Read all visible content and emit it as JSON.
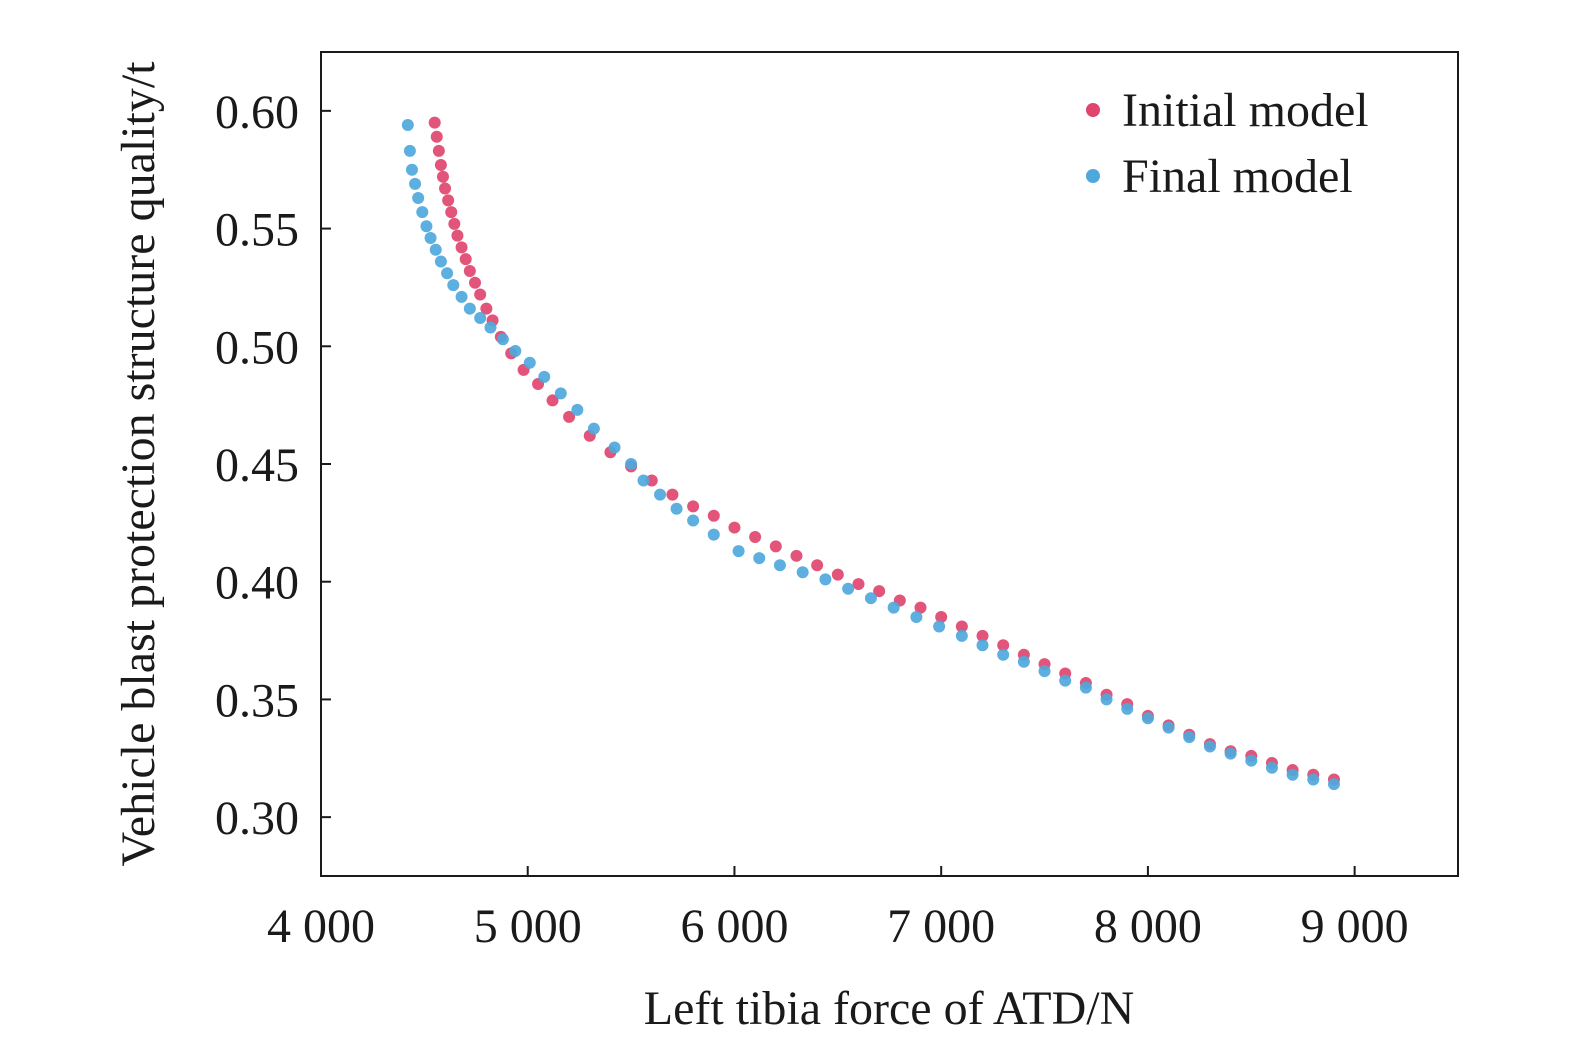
{
  "chart_data": {
    "type": "scatter",
    "xlabel": "Left tibia force of ATD/N",
    "ylabel": "Vehicle blast protection structure quality/t",
    "xlim": [
      4000,
      9500
    ],
    "ylim": [
      0.275,
      0.625
    ],
    "x_ticks": [
      4000,
      5000,
      6000,
      7000,
      8000,
      9000
    ],
    "x_tick_labels": [
      "4 000",
      "5 000",
      "6 000",
      "7 000",
      "8 000",
      "9 000"
    ],
    "y_ticks": [
      0.3,
      0.35,
      0.4,
      0.45,
      0.5,
      0.55,
      0.6
    ],
    "y_tick_labels": [
      "0.30",
      "0.35",
      "0.40",
      "0.45",
      "0.50",
      "0.55",
      "0.60"
    ],
    "grid": false,
    "legend_position": "top-right",
    "series": [
      {
        "name": "Initial model",
        "color": "#e0456e",
        "points": [
          [
            4550,
            0.595
          ],
          [
            4560,
            0.589
          ],
          [
            4570,
            0.583
          ],
          [
            4580,
            0.577
          ],
          [
            4590,
            0.572
          ],
          [
            4600,
            0.567
          ],
          [
            4615,
            0.562
          ],
          [
            4630,
            0.557
          ],
          [
            4645,
            0.552
          ],
          [
            4660,
            0.547
          ],
          [
            4680,
            0.542
          ],
          [
            4700,
            0.537
          ],
          [
            4720,
            0.532
          ],
          [
            4745,
            0.527
          ],
          [
            4770,
            0.522
          ],
          [
            4800,
            0.516
          ],
          [
            4830,
            0.511
          ],
          [
            4870,
            0.504
          ],
          [
            4920,
            0.497
          ],
          [
            4980,
            0.49
          ],
          [
            5050,
            0.484
          ],
          [
            5120,
            0.477
          ],
          [
            5200,
            0.47
          ],
          [
            5300,
            0.462
          ],
          [
            5400,
            0.455
          ],
          [
            5500,
            0.449
          ],
          [
            5600,
            0.443
          ],
          [
            5700,
            0.437
          ],
          [
            5800,
            0.432
          ],
          [
            5900,
            0.428
          ],
          [
            6000,
            0.423
          ],
          [
            6100,
            0.419
          ],
          [
            6200,
            0.415
          ],
          [
            6300,
            0.411
          ],
          [
            6400,
            0.407
          ],
          [
            6500,
            0.403
          ],
          [
            6600,
            0.399
          ],
          [
            6700,
            0.396
          ],
          [
            6800,
            0.392
          ],
          [
            6900,
            0.389
          ],
          [
            7000,
            0.385
          ],
          [
            7100,
            0.381
          ],
          [
            7200,
            0.377
          ],
          [
            7300,
            0.373
          ],
          [
            7400,
            0.369
          ],
          [
            7500,
            0.365
          ],
          [
            7600,
            0.361
          ],
          [
            7700,
            0.357
          ],
          [
            7800,
            0.352
          ],
          [
            7900,
            0.348
          ],
          [
            8000,
            0.343
          ],
          [
            8100,
            0.339
          ],
          [
            8200,
            0.335
          ],
          [
            8300,
            0.331
          ],
          [
            8400,
            0.328
          ],
          [
            8500,
            0.326
          ],
          [
            8600,
            0.323
          ],
          [
            8700,
            0.32
          ],
          [
            8800,
            0.318
          ],
          [
            8900,
            0.316
          ]
        ]
      },
      {
        "name": "Final model",
        "color": "#4ea8dc",
        "points": [
          [
            4420,
            0.594
          ],
          [
            4430,
            0.583
          ],
          [
            4440,
            0.575
          ],
          [
            4455,
            0.569
          ],
          [
            4470,
            0.563
          ],
          [
            4490,
            0.557
          ],
          [
            4510,
            0.551
          ],
          [
            4530,
            0.546
          ],
          [
            4555,
            0.541
          ],
          [
            4580,
            0.536
          ],
          [
            4610,
            0.531
          ],
          [
            4640,
            0.526
          ],
          [
            4680,
            0.521
          ],
          [
            4720,
            0.516
          ],
          [
            4770,
            0.512
          ],
          [
            4820,
            0.508
          ],
          [
            4880,
            0.503
          ],
          [
            4940,
            0.498
          ],
          [
            5010,
            0.493
          ],
          [
            5080,
            0.487
          ],
          [
            5160,
            0.48
          ],
          [
            5240,
            0.473
          ],
          [
            5320,
            0.465
          ],
          [
            5420,
            0.457
          ],
          [
            5500,
            0.45
          ],
          [
            5560,
            0.443
          ],
          [
            5640,
            0.437
          ],
          [
            5720,
            0.431
          ],
          [
            5800,
            0.426
          ],
          [
            5900,
            0.42
          ],
          [
            6020,
            0.413
          ],
          [
            6120,
            0.41
          ],
          [
            6220,
            0.407
          ],
          [
            6330,
            0.404
          ],
          [
            6440,
            0.401
          ],
          [
            6550,
            0.397
          ],
          [
            6660,
            0.393
          ],
          [
            6770,
            0.389
          ],
          [
            6880,
            0.385
          ],
          [
            6990,
            0.381
          ],
          [
            7100,
            0.377
          ],
          [
            7200,
            0.373
          ],
          [
            7300,
            0.369
          ],
          [
            7400,
            0.366
          ],
          [
            7500,
            0.362
          ],
          [
            7600,
            0.358
          ],
          [
            7700,
            0.355
          ],
          [
            7800,
            0.35
          ],
          [
            7900,
            0.346
          ],
          [
            8000,
            0.342
          ],
          [
            8100,
            0.338
          ],
          [
            8200,
            0.334
          ],
          [
            8300,
            0.33
          ],
          [
            8400,
            0.327
          ],
          [
            8500,
            0.324
          ],
          [
            8600,
            0.321
          ],
          [
            8700,
            0.318
          ],
          [
            8800,
            0.316
          ],
          [
            8900,
            0.314
          ]
        ]
      }
    ]
  }
}
